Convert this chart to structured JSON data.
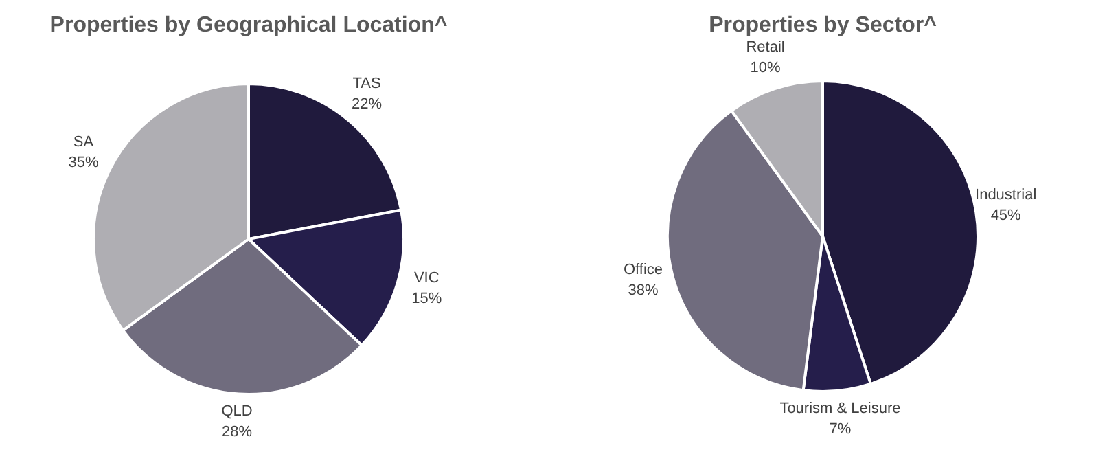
{
  "chart_data": [
    {
      "type": "pie",
      "title": "Properties by Geographical Location^",
      "categories": [
        "TAS",
        "VIC",
        "QLD",
        "SA"
      ],
      "values": [
        22,
        15,
        28,
        35
      ],
      "value_labels": [
        "22%",
        "15%",
        "28%",
        "35%"
      ],
      "colors": [
        "#201a3d",
        "#251e4b",
        "#706c7e",
        "#afaeb3"
      ]
    },
    {
      "type": "pie",
      "title": "Properties by Sector^",
      "categories": [
        "Industrial",
        "Tourism & Leisure",
        "Office",
        "Retail"
      ],
      "values": [
        45,
        7,
        38,
        10
      ],
      "value_labels": [
        "45%",
        "7%",
        "38%",
        "10%"
      ],
      "colors": [
        "#201a3d",
        "#251e4b",
        "#706c7e",
        "#afaeb3"
      ]
    }
  ]
}
